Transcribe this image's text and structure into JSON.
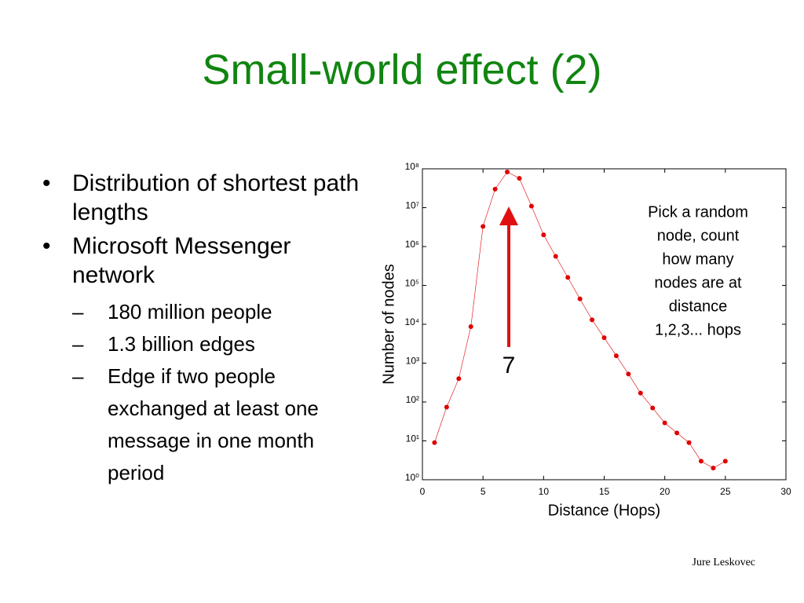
{
  "title": "Small-world effect (2)",
  "bullets": [
    {
      "text": "Distribution of shortest path lengths",
      "subs": []
    },
    {
      "text": "Microsoft Messenger network",
      "subs": [
        "180 million people",
        "1.3 billion edges",
        "Edge if two people exchanged at least one message in one month period"
      ]
    }
  ],
  "footer": "Jure Leskovec",
  "chart_data": {
    "type": "line",
    "x_label": "Distance (Hops)",
    "y_label": "Number of nodes",
    "x": [
      1,
      2,
      3,
      4,
      5,
      6,
      7,
      8,
      9,
      10,
      11,
      12,
      13,
      14,
      15,
      16,
      17,
      18,
      19,
      20,
      21,
      22,
      23,
      24,
      25
    ],
    "series": [
      {
        "color": "#e00000",
        "values": [
          9,
          74,
          400,
          8700,
          3300000,
          30000000,
          83000000,
          57000000,
          11000000,
          2000000,
          560000,
          160000,
          45000,
          13000,
          4500,
          1550,
          525,
          170,
          70,
          29,
          16,
          9,
          3,
          2,
          3
        ]
      }
    ],
    "xlim": [
      0,
      30
    ],
    "xticks": [
      0,
      5,
      10,
      15,
      20,
      25,
      30
    ],
    "ylim": [
      1,
      100000000
    ],
    "yscale": "log",
    "yticks": [
      {
        "value": 1,
        "label": "10⁰"
      },
      {
        "value": 10,
        "label": "10¹"
      },
      {
        "value": 100,
        "label": "10²"
      },
      {
        "value": 1000,
        "label": "10³"
      },
      {
        "value": 10000,
        "label": "10⁴"
      },
      {
        "value": 100000,
        "label": "10⁵"
      },
      {
        "value": 1000000,
        "label": "10⁶"
      },
      {
        "value": 10000000,
        "label": "10⁷"
      },
      {
        "value": 100000000,
        "label": "10⁸"
      }
    ],
    "annotation": [
      "Pick a random",
      "node, count",
      "how many",
      "nodes are at",
      "distance",
      "1,2,3... hops"
    ],
    "arrow_label": "7"
  }
}
